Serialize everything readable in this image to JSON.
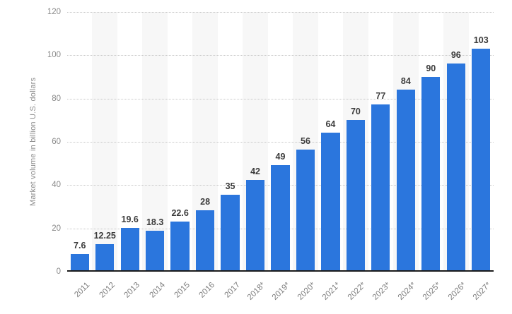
{
  "chart_data": {
    "type": "bar",
    "title": "",
    "xlabel": "",
    "ylabel": "Market volume in billion U.S. dollars",
    "ylim": [
      0,
      120
    ],
    "yticks": [
      0,
      20,
      40,
      60,
      80,
      100,
      120
    ],
    "grid": "horizontal-dotted",
    "legend": "none",
    "categories": [
      "2011",
      "2012",
      "2013",
      "2014",
      "2015",
      "2016",
      "2017",
      "2018*",
      "2019*",
      "2020*",
      "2021*",
      "2022*",
      "2023*",
      "2024*",
      "2025*",
      "2026*",
      "2027*"
    ],
    "values": [
      7.6,
      12.25,
      19.6,
      18.3,
      22.6,
      28,
      35,
      42,
      49,
      56,
      64,
      70,
      77,
      84,
      90,
      96,
      103
    ],
    "value_labels": [
      "7.6",
      "12.25",
      "19.6",
      "18.3",
      "22.6",
      "28",
      "35",
      "42",
      "49",
      "56",
      "64",
      "70",
      "77",
      "84",
      "90",
      "96",
      "103"
    ],
    "colors": {
      "bar": "#2b76dd",
      "value_label": "#3c3c3c",
      "y_tick_label": "#8a8a8a",
      "x_tick_label": "#7d7d7d",
      "axis_title": "#8d8d8d",
      "gridline": "#c6c6c6",
      "baseline": "#1b1b1b",
      "stripe": "#f7f7f7",
      "background": "#ffffff"
    }
  }
}
